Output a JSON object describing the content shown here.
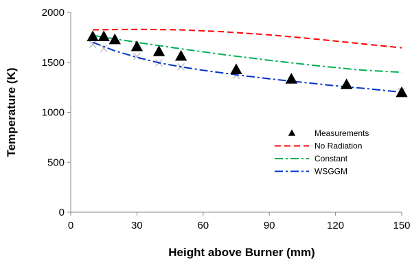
{
  "chart_data": {
    "type": "line",
    "title": "",
    "xlabel": "Height above Burner (mm)",
    "ylabel": "Temperature (K)",
    "xlim": [
      0,
      150
    ],
    "ylim": [
      0,
      2000
    ],
    "xticks": [
      0,
      30,
      60,
      90,
      120,
      150
    ],
    "yticks": [
      0,
      500,
      1000,
      1500,
      2000
    ],
    "grid": false,
    "legend_position": "lower-right",
    "series": [
      {
        "name": "Measurements",
        "style": "triangle-marker",
        "color": "#000000",
        "x": [
          10,
          15,
          20,
          30,
          40,
          50,
          75,
          100,
          125,
          150
        ],
        "y": [
          1755,
          1755,
          1725,
          1655,
          1605,
          1560,
          1425,
          1330,
          1275,
          1195
        ]
      },
      {
        "name": "No Radiation",
        "style": "dashed",
        "color": "#ff0000",
        "x": [
          10,
          30,
          50,
          70,
          90,
          110,
          130,
          150
        ],
        "y": [
          1825,
          1830,
          1825,
          1805,
          1775,
          1735,
          1690,
          1645
        ]
      },
      {
        "name": "Constant",
        "style": "dash-dot",
        "color": "#00b050",
        "x": [
          10,
          30,
          50,
          70,
          90,
          110,
          130,
          150
        ],
        "y": [
          1770,
          1700,
          1635,
          1575,
          1520,
          1470,
          1425,
          1400
        ]
      },
      {
        "name": "WSGGM",
        "style": "dash-dot",
        "color": "#0033cc",
        "x": [
          10,
          20,
          30,
          40,
          50,
          60,
          75,
          90,
          105,
          120,
          135,
          150
        ],
        "y": [
          1700,
          1615,
          1550,
          1495,
          1455,
          1420,
          1375,
          1335,
          1300,
          1265,
          1235,
          1200
        ]
      }
    ],
    "extra_markers": {
      "style": "x-marker",
      "color": "#c0c0c0",
      "x": [
        10,
        15,
        30,
        40,
        50,
        75,
        150
      ],
      "y": [
        1680,
        1640,
        1560,
        1495,
        1455,
        1370,
        1210
      ]
    }
  }
}
